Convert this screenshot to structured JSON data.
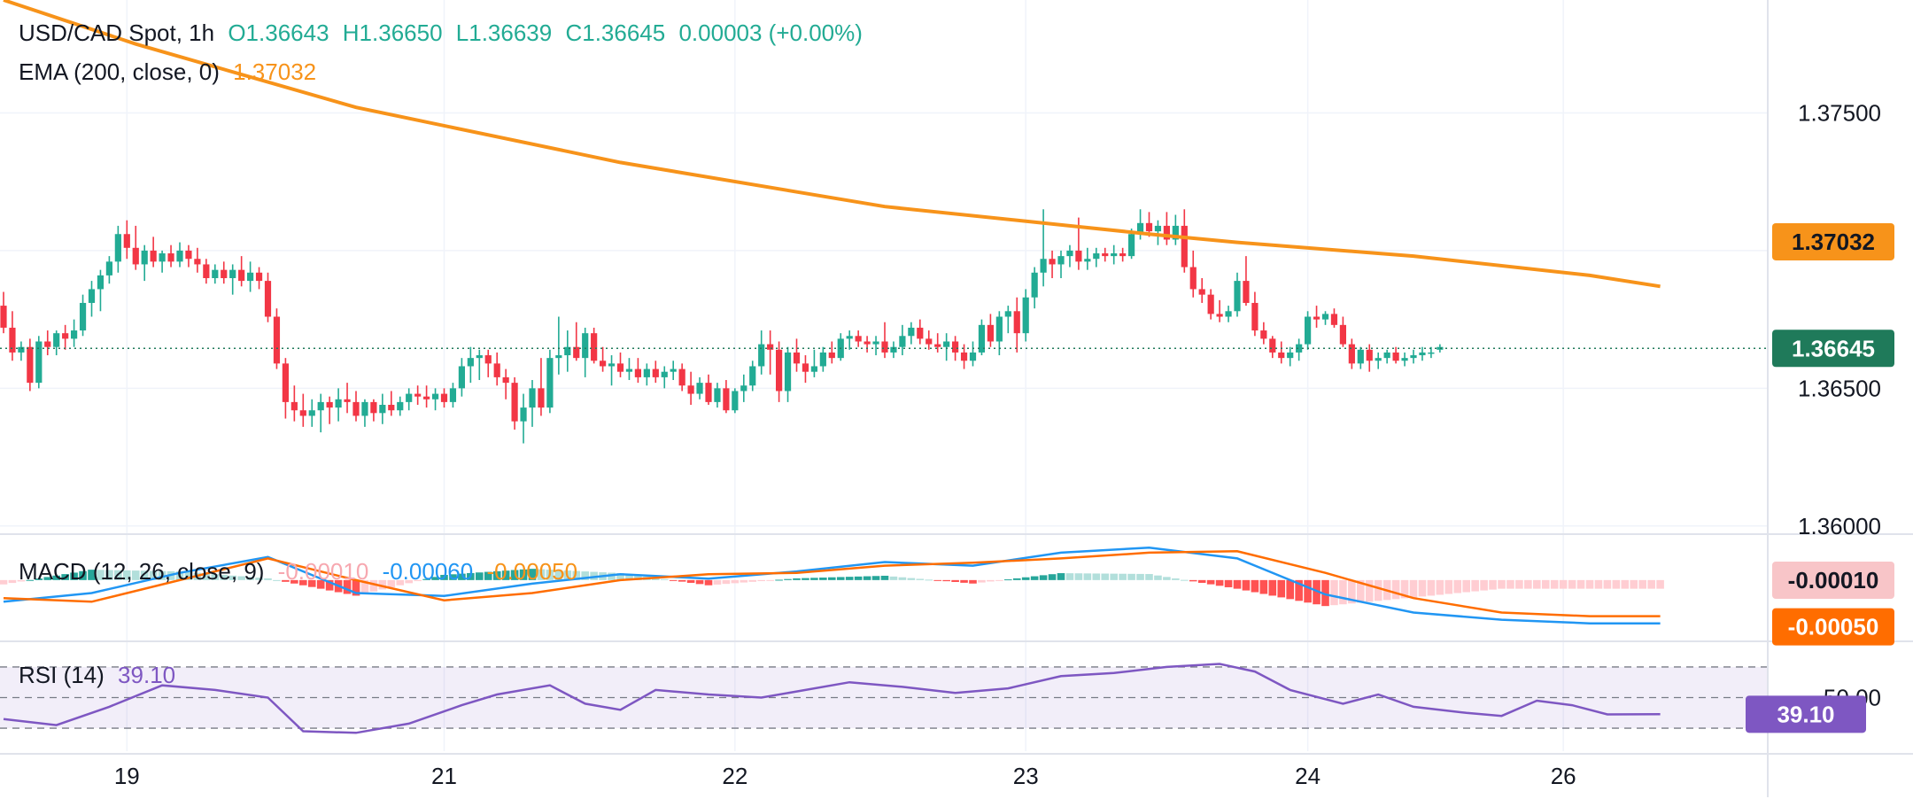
{
  "header": {
    "symbol": "USD/CAD Spot, 1h",
    "open": "O1.36643",
    "high": "H1.36650",
    "low": "L1.36639",
    "close": "C1.36645",
    "change": "0.00003 (+0.00%)"
  },
  "ema": {
    "label": "EMA (200, close, 0)",
    "value": "1.37032",
    "tag": "1.37032"
  },
  "price": {
    "last_tag": "1.36645",
    "last_value": 1.36645
  },
  "macd": {
    "label": "MACD (12, 26, close, 9)",
    "hist": "-0.00010",
    "macd": "-0.00060",
    "signal": "-0.00050",
    "tag_hist": "-0.00010",
    "tag_signal": "-0.00050"
  },
  "rsi": {
    "label": "RSI (14)",
    "value": "39.10",
    "tag": "39.10",
    "level_label": "50.00"
  },
  "colors": {
    "up": "#22ab94",
    "down": "#f23645",
    "ema": "#f7931a",
    "macd": "#2196f3",
    "signal": "#ff6d00",
    "rsi": "#7e57c2"
  },
  "chart_data": {
    "type": "candlestick",
    "title": "USD/CAD Spot, 1h",
    "x_ticks": [
      "19",
      "21",
      "22",
      "23",
      "24",
      "26"
    ],
    "y_ticks": [
      "1.37500",
      "1.36500",
      "1.36000"
    ],
    "ylim": [
      1.3598,
      1.3791
    ],
    "ema_200": [
      [
        0,
        1.3791
      ],
      [
        15,
        1.3775
      ],
      [
        40,
        1.3752
      ],
      [
        70,
        1.3732
      ],
      [
        100,
        1.3716
      ],
      [
        130,
        1.3706
      ],
      [
        140,
        1.3703
      ],
      [
        160,
        1.3698
      ],
      [
        180,
        1.3691
      ],
      [
        188,
        1.3687
      ]
    ],
    "candles": [
      [
        1.368,
        1.3685,
        1.367,
        1.3672
      ],
      [
        1.3672,
        1.3678,
        1.366,
        1.3663
      ],
      [
        1.3663,
        1.3667,
        1.366,
        1.3665
      ],
      [
        1.3665,
        1.3668,
        1.3649,
        1.3652
      ],
      [
        1.3652,
        1.3669,
        1.365,
        1.3667
      ],
      [
        1.3667,
        1.3671,
        1.3662,
        1.3665
      ],
      [
        1.3665,
        1.3671,
        1.3662,
        1.367
      ],
      [
        1.367,
        1.3673,
        1.3664,
        1.3668
      ],
      [
        1.3668,
        1.3675,
        1.3665,
        1.3671
      ],
      [
        1.3671,
        1.3684,
        1.3669,
        1.3681
      ],
      [
        1.3681,
        1.3689,
        1.3676,
        1.3686
      ],
      [
        1.3686,
        1.3693,
        1.3678,
        1.3691
      ],
      [
        1.3691,
        1.3698,
        1.3688,
        1.3696
      ],
      [
        1.3696,
        1.3709,
        1.3692,
        1.3706
      ],
      [
        1.3706,
        1.3711,
        1.3697,
        1.3701
      ],
      [
        1.3701,
        1.3709,
        1.3693,
        1.3695
      ],
      [
        1.3695,
        1.3702,
        1.3689,
        1.37
      ],
      [
        1.37,
        1.3705,
        1.3694,
        1.3696
      ],
      [
        1.3696,
        1.37,
        1.3692,
        1.3699
      ],
      [
        1.3699,
        1.3702,
        1.3694,
        1.3696
      ],
      [
        1.3696,
        1.3703,
        1.3694,
        1.37
      ],
      [
        1.37,
        1.3702,
        1.3694,
        1.3697
      ],
      [
        1.3697,
        1.3701,
        1.3692,
        1.3695
      ],
      [
        1.3695,
        1.3697,
        1.3688,
        1.369
      ],
      [
        1.369,
        1.3695,
        1.3688,
        1.3693
      ],
      [
        1.3693,
        1.3696,
        1.3688,
        1.369
      ],
      [
        1.369,
        1.3695,
        1.3684,
        1.3693
      ],
      [
        1.3693,
        1.3698,
        1.3687,
        1.3689
      ],
      [
        1.3689,
        1.3696,
        1.3685,
        1.3692
      ],
      [
        1.3692,
        1.3694,
        1.3686,
        1.3689
      ],
      [
        1.3689,
        1.3692,
        1.3674,
        1.3676
      ],
      [
        1.3676,
        1.3679,
        1.3657,
        1.3659
      ],
      [
        1.3659,
        1.3661,
        1.3639,
        1.3645
      ],
      [
        1.3645,
        1.3651,
        1.3638,
        1.3642
      ],
      [
        1.3642,
        1.3648,
        1.3636,
        1.364
      ],
      [
        1.364,
        1.3646,
        1.3636,
        1.3642
      ],
      [
        1.3642,
        1.3648,
        1.3634,
        1.3645
      ],
      [
        1.3645,
        1.3647,
        1.3637,
        1.3643
      ],
      [
        1.3643,
        1.365,
        1.3638,
        1.3646
      ],
      [
        1.3646,
        1.3652,
        1.3641,
        1.3645
      ],
      [
        1.3645,
        1.3649,
        1.3638,
        1.364
      ],
      [
        1.364,
        1.3646,
        1.3636,
        1.3645
      ],
      [
        1.3645,
        1.3646,
        1.3638,
        1.3641
      ],
      [
        1.3641,
        1.3648,
        1.3637,
        1.3644
      ],
      [
        1.3644,
        1.3649,
        1.364,
        1.3642
      ],
      [
        1.3642,
        1.3647,
        1.364,
        1.3645
      ],
      [
        1.3645,
        1.365,
        1.3642,
        1.3648
      ],
      [
        1.3648,
        1.3651,
        1.3644,
        1.3647
      ],
      [
        1.3647,
        1.3651,
        1.3643,
        1.3646
      ],
      [
        1.3646,
        1.365,
        1.3642,
        1.3648
      ],
      [
        1.3648,
        1.365,
        1.3643,
        1.3645
      ],
      [
        1.3645,
        1.3652,
        1.3643,
        1.365
      ],
      [
        1.365,
        1.3661,
        1.3647,
        1.3658
      ],
      [
        1.3658,
        1.3665,
        1.3652,
        1.3661
      ],
      [
        1.3661,
        1.3664,
        1.3653,
        1.3662
      ],
      [
        1.3662,
        1.3664,
        1.3654,
        1.3659
      ],
      [
        1.3659,
        1.3663,
        1.3651,
        1.3654
      ],
      [
        1.3654,
        1.3657,
        1.3646,
        1.3652
      ],
      [
        1.3652,
        1.3654,
        1.3635,
        1.3638
      ],
      [
        1.3638,
        1.3648,
        1.363,
        1.3643
      ],
      [
        1.3643,
        1.3653,
        1.3636,
        1.365
      ],
      [
        1.365,
        1.3661,
        1.364,
        1.3643
      ],
      [
        1.3643,
        1.3664,
        1.3641,
        1.3661
      ],
      [
        1.3661,
        1.3676,
        1.3655,
        1.3662
      ],
      [
        1.3662,
        1.3671,
        1.3656,
        1.3665
      ],
      [
        1.3665,
        1.3674,
        1.366,
        1.3661
      ],
      [
        1.3661,
        1.3672,
        1.3654,
        1.367
      ],
      [
        1.367,
        1.3672,
        1.3659,
        1.366
      ],
      [
        1.366,
        1.3665,
        1.3656,
        1.3658
      ],
      [
        1.3658,
        1.3662,
        1.3651,
        1.3659
      ],
      [
        1.3659,
        1.3663,
        1.3654,
        1.3656
      ],
      [
        1.3656,
        1.3661,
        1.3653,
        1.3657
      ],
      [
        1.3657,
        1.3661,
        1.3652,
        1.3654
      ],
      [
        1.3654,
        1.3659,
        1.3651,
        1.3657
      ],
      [
        1.3657,
        1.366,
        1.3652,
        1.3654
      ],
      [
        1.3654,
        1.3658,
        1.365,
        1.3656
      ],
      [
        1.3656,
        1.366,
        1.3653,
        1.3657
      ],
      [
        1.3657,
        1.3659,
        1.3649,
        1.3651
      ],
      [
        1.3651,
        1.3656,
        1.3644,
        1.3648
      ],
      [
        1.3648,
        1.3654,
        1.3646,
        1.3652
      ],
      [
        1.3652,
        1.3655,
        1.3644,
        1.3645
      ],
      [
        1.3645,
        1.3652,
        1.3643,
        1.365
      ],
      [
        1.365,
        1.3653,
        1.3641,
        1.3642
      ],
      [
        1.3642,
        1.365,
        1.3641,
        1.3649
      ],
      [
        1.3649,
        1.3655,
        1.3645,
        1.3651
      ],
      [
        1.3651,
        1.366,
        1.3649,
        1.3658
      ],
      [
        1.3658,
        1.3671,
        1.3655,
        1.3666
      ],
      [
        1.3666,
        1.3671,
        1.3655,
        1.3664
      ],
      [
        1.3664,
        1.3667,
        1.3645,
        1.3649
      ],
      [
        1.3649,
        1.3665,
        1.3645,
        1.3663
      ],
      [
        1.3663,
        1.3668,
        1.3656,
        1.3659
      ],
      [
        1.3659,
        1.3662,
        1.3652,
        1.3656
      ],
      [
        1.3656,
        1.3664,
        1.3654,
        1.3658
      ],
      [
        1.3658,
        1.3665,
        1.3656,
        1.3663
      ],
      [
        1.3663,
        1.3667,
        1.3659,
        1.3661
      ],
      [
        1.3661,
        1.367,
        1.366,
        1.3668
      ],
      [
        1.3668,
        1.3671,
        1.3664,
        1.3669
      ],
      [
        1.3669,
        1.3671,
        1.3665,
        1.3667
      ],
      [
        1.3667,
        1.3669,
        1.3663,
        1.3666
      ],
      [
        1.3666,
        1.3669,
        1.3662,
        1.3667
      ],
      [
        1.3667,
        1.3674,
        1.3661,
        1.3663
      ],
      [
        1.3663,
        1.3667,
        1.3661,
        1.3665
      ],
      [
        1.3665,
        1.3673,
        1.3662,
        1.3669
      ],
      [
        1.3669,
        1.3674,
        1.3666,
        1.3672
      ],
      [
        1.3672,
        1.3675,
        1.3666,
        1.3668
      ],
      [
        1.3668,
        1.3671,
        1.3664,
        1.3666
      ],
      [
        1.3666,
        1.367,
        1.3663,
        1.3665
      ],
      [
        1.3665,
        1.367,
        1.366,
        1.3667
      ],
      [
        1.3667,
        1.3669,
        1.366,
        1.3663
      ],
      [
        1.3663,
        1.3666,
        1.3657,
        1.366
      ],
      [
        1.366,
        1.3667,
        1.3658,
        1.3663
      ],
      [
        1.3663,
        1.3675,
        1.3662,
        1.3673
      ],
      [
        1.3673,
        1.3677,
        1.3665,
        1.3667
      ],
      [
        1.3667,
        1.3678,
        1.3662,
        1.3676
      ],
      [
        1.3676,
        1.368,
        1.367,
        1.3678
      ],
      [
        1.3678,
        1.3683,
        1.3663,
        1.367
      ],
      [
        1.367,
        1.3686,
        1.3667,
        1.3683
      ],
      [
        1.3683,
        1.3694,
        1.3679,
        1.3692
      ],
      [
        1.3692,
        1.3715,
        1.3687,
        1.3697
      ],
      [
        1.3697,
        1.37,
        1.369,
        1.3695
      ],
      [
        1.3695,
        1.37,
        1.369,
        1.3698
      ],
      [
        1.3698,
        1.3702,
        1.3694,
        1.37
      ],
      [
        1.37,
        1.3712,
        1.3693,
        1.3696
      ],
      [
        1.3696,
        1.3701,
        1.3693,
        1.3697
      ],
      [
        1.3697,
        1.3701,
        1.3694,
        1.3699
      ],
      [
        1.3699,
        1.3701,
        1.3696,
        1.3698
      ],
      [
        1.3698,
        1.3702,
        1.3695,
        1.3699
      ],
      [
        1.3699,
        1.3701,
        1.3696,
        1.3698
      ],
      [
        1.3698,
        1.3708,
        1.3697,
        1.3706
      ],
      [
        1.3706,
        1.3715,
        1.3704,
        1.371
      ],
      [
        1.371,
        1.3714,
        1.3705,
        1.3707
      ],
      [
        1.3707,
        1.3711,
        1.3702,
        1.3709
      ],
      [
        1.3709,
        1.3714,
        1.3702,
        1.3704
      ],
      [
        1.3704,
        1.3713,
        1.3702,
        1.3709
      ],
      [
        1.3709,
        1.3715,
        1.3692,
        1.3694
      ],
      [
        1.3694,
        1.37,
        1.3683,
        1.3686
      ],
      [
        1.3686,
        1.369,
        1.3681,
        1.3684
      ],
      [
        1.3684,
        1.3686,
        1.3675,
        1.3677
      ],
      [
        1.3677,
        1.3682,
        1.3674,
        1.3676
      ],
      [
        1.3676,
        1.368,
        1.3674,
        1.3678
      ],
      [
        1.3678,
        1.3692,
        1.3676,
        1.3689
      ],
      [
        1.3689,
        1.3698,
        1.368,
        1.3681
      ],
      [
        1.3681,
        1.3685,
        1.3669,
        1.3671
      ],
      [
        1.3671,
        1.3674,
        1.3666,
        1.3668
      ],
      [
        1.3668,
        1.3669,
        1.3661,
        1.3663
      ],
      [
        1.3663,
        1.3667,
        1.3659,
        1.3661
      ],
      [
        1.3661,
        1.3665,
        1.3658,
        1.3663
      ],
      [
        1.3663,
        1.3668,
        1.366,
        1.3666
      ],
      [
        1.3666,
        1.3678,
        1.3664,
        1.3676
      ],
      [
        1.3676,
        1.368,
        1.3672,
        1.3675
      ],
      [
        1.3675,
        1.3678,
        1.3673,
        1.3677
      ],
      [
        1.3677,
        1.3679,
        1.3672,
        1.3673
      ],
      [
        1.3673,
        1.3676,
        1.3665,
        1.3666
      ],
      [
        1.3666,
        1.3668,
        1.3657,
        1.3659
      ],
      [
        1.3659,
        1.3665,
        1.3657,
        1.3664
      ],
      [
        1.3664,
        1.3666,
        1.3656,
        1.366
      ],
      [
        1.366,
        1.3663,
        1.3657,
        1.3661
      ],
      [
        1.3661,
        1.3664,
        1.3659,
        1.3663
      ],
      [
        1.3663,
        1.3665,
        1.3659,
        1.366
      ],
      [
        1.366,
        1.3663,
        1.3658,
        1.3661
      ],
      [
        1.3661,
        1.3664,
        1.3659,
        1.3662
      ],
      [
        1.3662,
        1.3665,
        1.366,
        1.3663
      ],
      [
        1.3663,
        1.3665,
        1.3661,
        1.3663
      ],
      [
        1.3664,
        1.3666,
        1.3663,
        1.3665
      ]
    ],
    "macd_series": [
      [
        0,
        -0.0003
      ],
      [
        10,
        -0.00018
      ],
      [
        20,
        0.0001
      ],
      [
        30,
        0.00032
      ],
      [
        40,
        -0.00018
      ],
      [
        50,
        -0.00022
      ],
      [
        60,
        -5e-05
      ],
      [
        70,
        8e-05
      ],
      [
        80,
        2e-05
      ],
      [
        90,
        0.00012
      ],
      [
        100,
        0.00025
      ],
      [
        110,
        0.0002
      ],
      [
        120,
        0.00038
      ],
      [
        130,
        0.00045
      ],
      [
        140,
        0.0003
      ],
      [
        150,
        -0.0002
      ],
      [
        160,
        -0.00045
      ],
      [
        170,
        -0.00055
      ],
      [
        180,
        -0.0006
      ],
      [
        188,
        -0.0006
      ]
    ],
    "signal_series": [
      [
        0,
        -0.00025
      ],
      [
        10,
        -0.0003
      ],
      [
        20,
        0.0
      ],
      [
        30,
        0.0003
      ],
      [
        40,
        0.0
      ],
      [
        50,
        -0.00028
      ],
      [
        60,
        -0.00018
      ],
      [
        70,
        0.0
      ],
      [
        80,
        8e-05
      ],
      [
        90,
        0.0001
      ],
      [
        100,
        0.0002
      ],
      [
        110,
        0.00024
      ],
      [
        120,
        0.0003
      ],
      [
        130,
        0.00038
      ],
      [
        140,
        0.0004
      ],
      [
        150,
        0.0001
      ],
      [
        160,
        -0.00025
      ],
      [
        170,
        -0.00045
      ],
      [
        180,
        -0.0005
      ],
      [
        188,
        -0.0005
      ]
    ],
    "rsi_series": [
      [
        0,
        36
      ],
      [
        6,
        32
      ],
      [
        12,
        44
      ],
      [
        18,
        58
      ],
      [
        24,
        55
      ],
      [
        30,
        50
      ],
      [
        34,
        28
      ],
      [
        40,
        27
      ],
      [
        46,
        33
      ],
      [
        52,
        45
      ],
      [
        56,
        52
      ],
      [
        62,
        58
      ],
      [
        66,
        46
      ],
      [
        70,
        42
      ],
      [
        74,
        55
      ],
      [
        80,
        52
      ],
      [
        86,
        50
      ],
      [
        90,
        54
      ],
      [
        96,
        60
      ],
      [
        102,
        57
      ],
      [
        108,
        53
      ],
      [
        114,
        56
      ],
      [
        120,
        64
      ],
      [
        126,
        66
      ],
      [
        132,
        70
      ],
      [
        138,
        72
      ],
      [
        142,
        67
      ],
      [
        146,
        55
      ],
      [
        152,
        46
      ],
      [
        156,
        52
      ],
      [
        160,
        44
      ],
      [
        166,
        40
      ],
      [
        170,
        38
      ],
      [
        174,
        48
      ],
      [
        178,
        45
      ],
      [
        182,
        39
      ],
      [
        188,
        39.1
      ]
    ],
    "macd_ylim": [
      -0.0008,
      0.0006
    ],
    "rsi_ylim": [
      15,
      85
    ]
  }
}
